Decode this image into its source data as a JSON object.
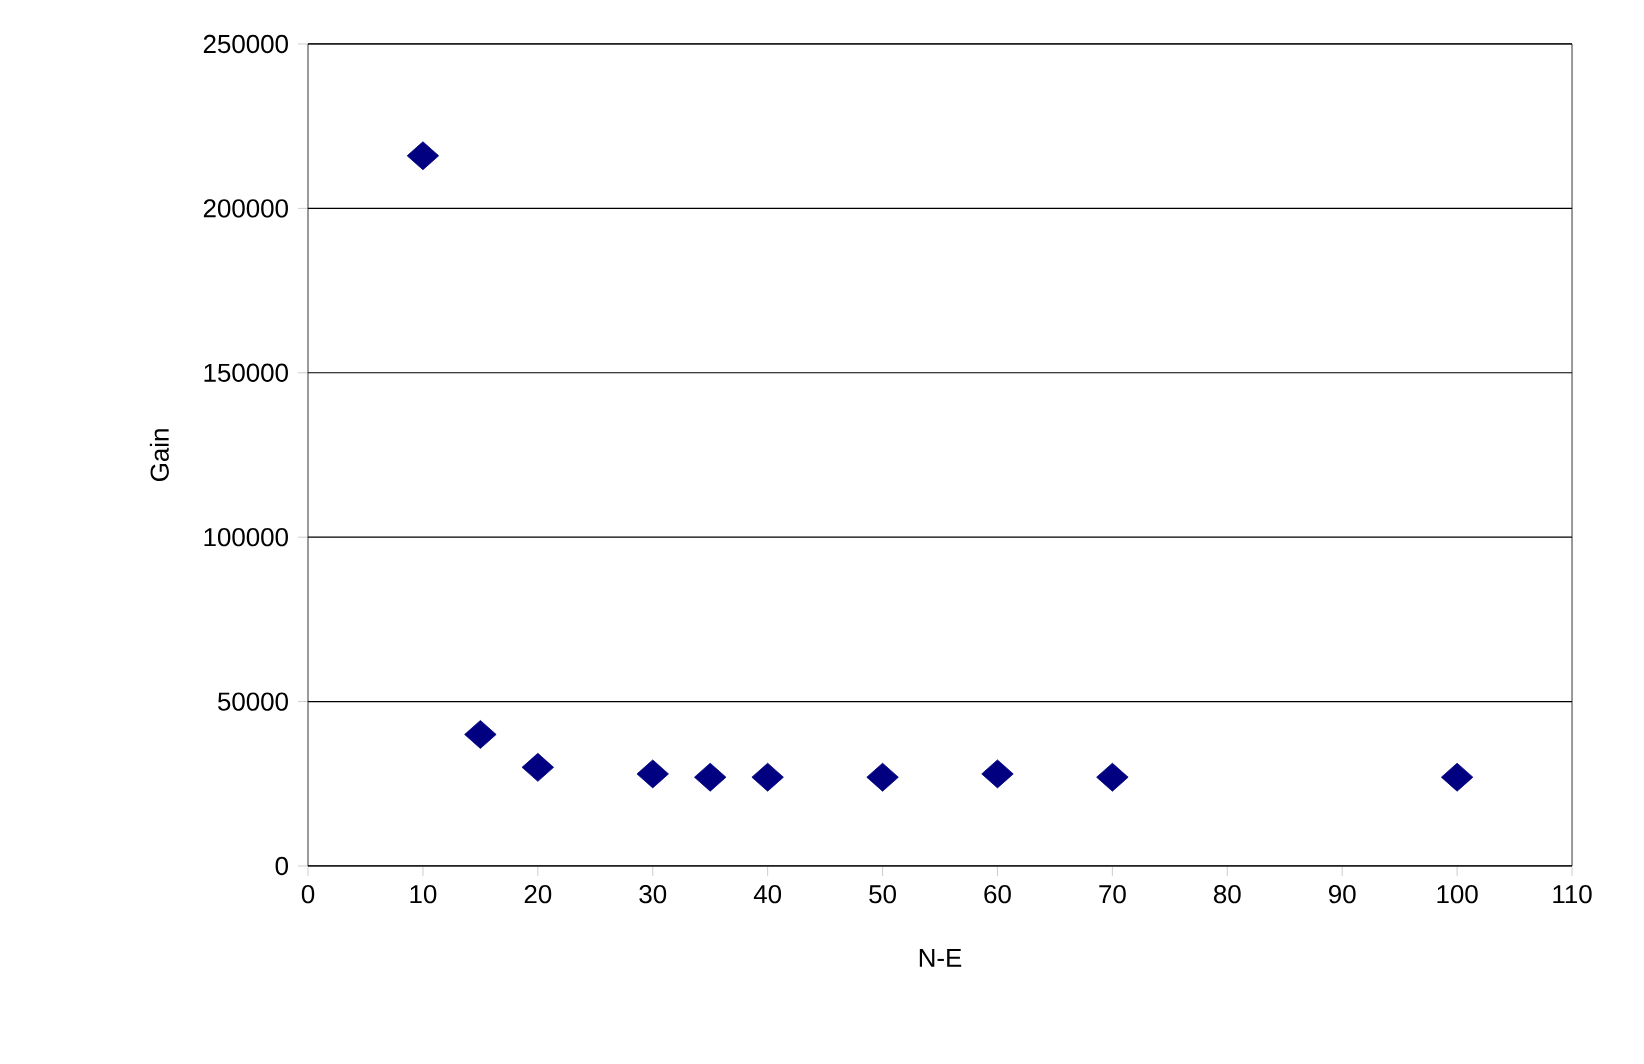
{
  "chart_data": {
    "type": "scatter",
    "xlabel": "N-E",
    "ylabel": "Gain",
    "x": [
      10,
      15,
      20,
      30,
      35,
      40,
      50,
      60,
      70,
      100
    ],
    "series": [
      {
        "color": "#000080",
        "values": [
          216000,
          40000,
          30000,
          28000,
          27000,
          27000,
          27000,
          28000,
          27000,
          27000
        ]
      }
    ],
    "xlim": [
      0,
      110
    ],
    "xticks": [
      0,
      10,
      20,
      30,
      40,
      50,
      60,
      70,
      80,
      90,
      100,
      110
    ],
    "ylim": [
      0,
      250000
    ],
    "yticks": [
      0,
      50000,
      100000,
      150000,
      200000,
      250000
    ],
    "grid": "y",
    "marker": "diamond"
  }
}
